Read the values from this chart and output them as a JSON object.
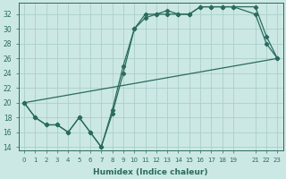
{
  "xlabel": "Humidex (Indice chaleur)",
  "bg_color": "#cce8e4",
  "line_color": "#2a6b5e",
  "grid_color": "#aacfcb",
  "xlim": [
    -0.5,
    23.5
  ],
  "ylim": [
    13.5,
    33.5
  ],
  "xticks": [
    0,
    1,
    2,
    3,
    4,
    5,
    6,
    7,
    8,
    9,
    10,
    11,
    12,
    13,
    14,
    15,
    16,
    17,
    18,
    19,
    21,
    22,
    23
  ],
  "yticks": [
    14,
    16,
    18,
    20,
    22,
    24,
    26,
    28,
    30,
    32
  ],
  "line1_x": [
    0,
    1,
    2,
    3,
    4,
    5,
    6,
    7,
    8,
    9,
    10,
    11,
    12,
    13,
    14,
    15,
    16,
    17,
    18,
    19,
    21,
    22,
    23
  ],
  "line1_y": [
    20,
    18,
    17,
    17,
    16,
    18,
    16,
    14,
    19,
    25,
    30,
    32,
    32,
    32.5,
    32,
    32,
    33,
    33,
    33,
    33,
    33,
    29,
    26
  ],
  "line2_x": [
    0,
    1,
    2,
    3,
    4,
    5,
    6,
    7,
    8,
    9,
    10,
    11,
    12,
    13,
    14,
    15,
    16,
    17,
    18,
    19,
    21,
    22,
    23
  ],
  "line2_y": [
    20,
    18,
    17,
    17,
    16,
    18,
    16,
    14,
    18.5,
    24,
    30,
    31.5,
    32,
    32,
    32,
    32,
    33,
    33,
    33,
    33,
    32,
    28,
    26
  ],
  "line3_x": [
    0,
    23
  ],
  "line3_y": [
    20,
    26
  ]
}
